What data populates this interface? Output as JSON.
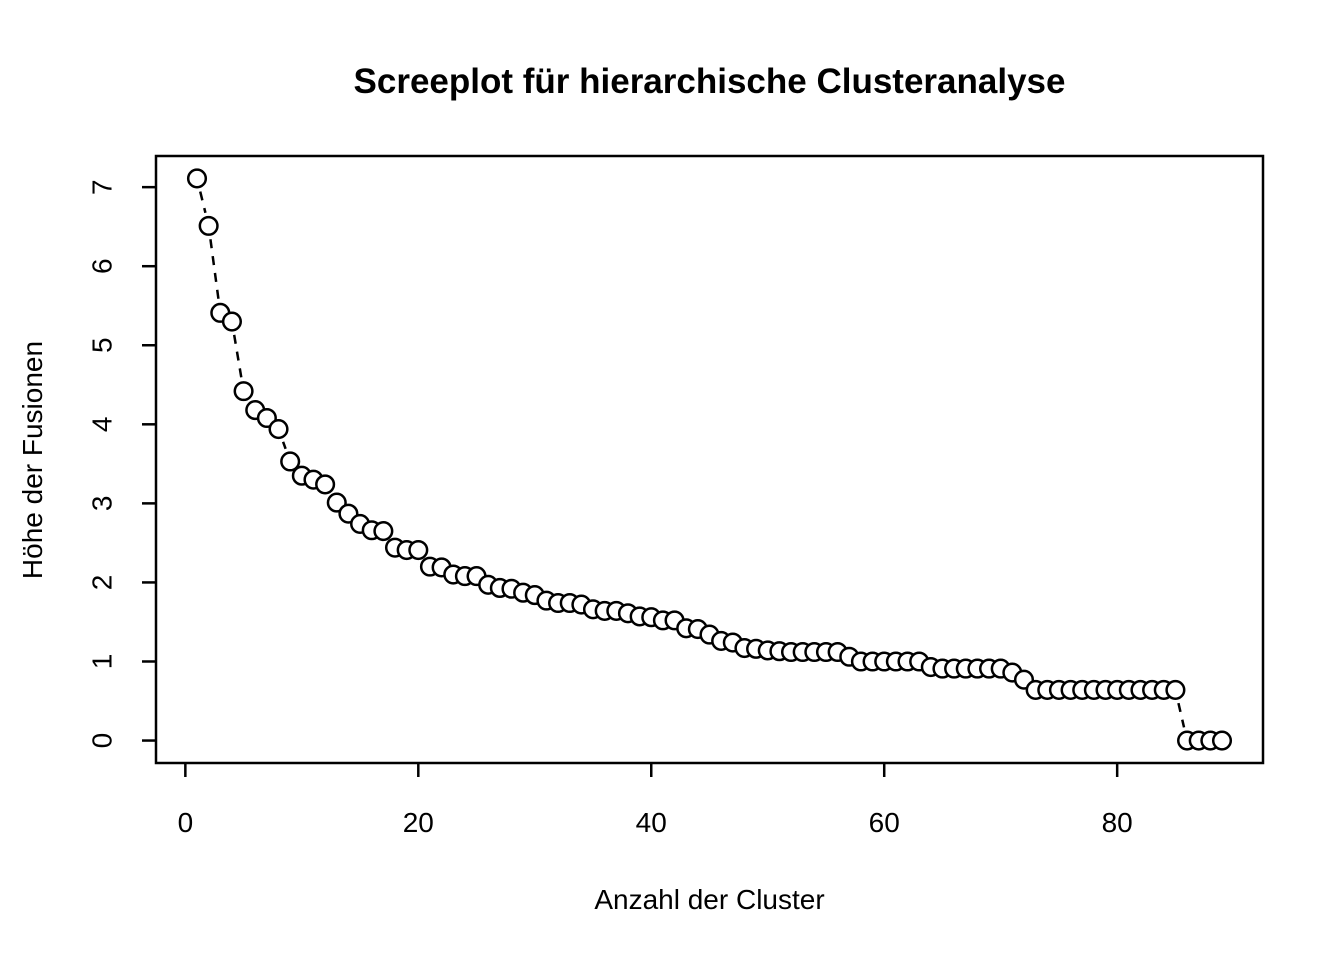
{
  "chart_data": {
    "type": "scatter",
    "title": "Screeplot für hierarchische Clusteranalyse",
    "xlabel": "Anzahl der Cluster",
    "ylabel": "Höhe der Fusionen",
    "marker": "open-circle",
    "line_style": "dashed",
    "color": "#000000",
    "background": "#ffffff",
    "x_start": 1,
    "heights": [
      7.11,
      6.51,
      5.41,
      5.3,
      4.42,
      4.18,
      4.08,
      3.94,
      3.53,
      3.35,
      3.3,
      3.24,
      3.01,
      2.87,
      2.74,
      2.66,
      2.65,
      2.44,
      2.41,
      2.41,
      2.2,
      2.19,
      2.1,
      2.08,
      2.08,
      1.97,
      1.93,
      1.92,
      1.87,
      1.84,
      1.77,
      1.74,
      1.74,
      1.72,
      1.66,
      1.64,
      1.64,
      1.61,
      1.57,
      1.56,
      1.52,
      1.52,
      1.42,
      1.41,
      1.34,
      1.26,
      1.24,
      1.17,
      1.16,
      1.14,
      1.13,
      1.12,
      1.12,
      1.12,
      1.12,
      1.12,
      1.06,
      1.0,
      1.0,
      1.0,
      1.0,
      1.0,
      1.0,
      0.93,
      0.91,
      0.91,
      0.91,
      0.91,
      0.91,
      0.91,
      0.86,
      0.77,
      0.64,
      0.64,
      0.64,
      0.64,
      0.64,
      0.64,
      0.64,
      0.64,
      0.64,
      0.64,
      0.64,
      0.64,
      0.64,
      0.0,
      0.0,
      0.0,
      0.0
    ],
    "xticks": [
      0,
      20,
      40,
      60,
      80
    ],
    "yticks": [
      0,
      1,
      2,
      3,
      4,
      5,
      6,
      7
    ],
    "xlim": [
      -2.52,
      92.52
    ],
    "ylim": [
      -0.284,
      7.394
    ],
    "grid": false,
    "legend": "none"
  }
}
